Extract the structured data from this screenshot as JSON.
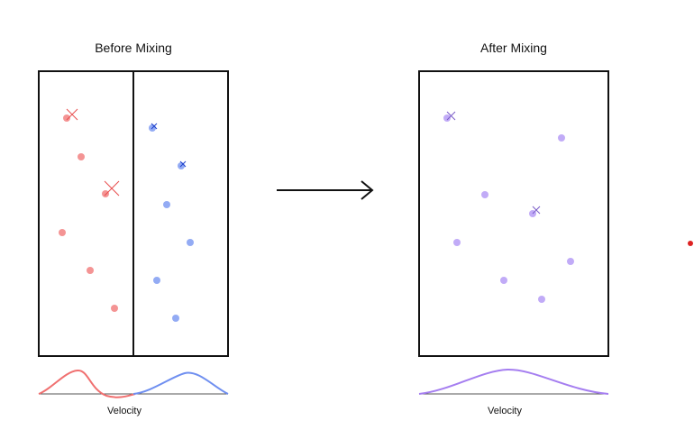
{
  "panels": {
    "before": {
      "title": "Before Mixing",
      "xlabel": "Velocity"
    },
    "after": {
      "title": "After Mixing",
      "xlabel": "Velocity"
    }
  },
  "colors": {
    "hot": "#f07070",
    "cold": "#6f8ff0",
    "mixed": "#b196f5",
    "mixed_curve": "#a57ef0",
    "box": "#111111",
    "arrow": "#111111",
    "baseline": "#555555",
    "outlier": "#dd2222"
  },
  "icons": {
    "arrow": "right-arrow-icon"
  }
}
